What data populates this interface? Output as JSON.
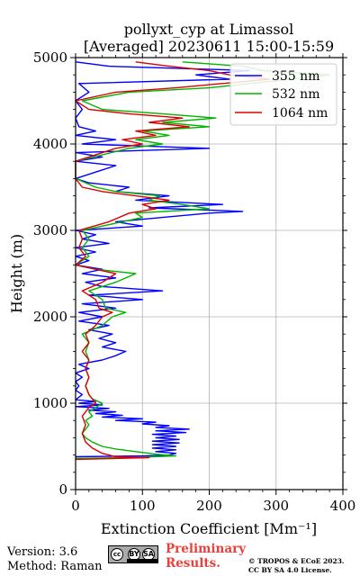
{
  "chart_data": {
    "type": "line",
    "title": "pollyxt_cyp at Limassol",
    "subtitle": "[Averaged] 20230611 15:00-15:59",
    "xlabel": "Extinction Coefficient [Mm⁻¹]",
    "ylabel": "Height (m)",
    "xlim": [
      0,
      400
    ],
    "ylim": [
      0,
      5000
    ],
    "xticks": [
      "0",
      "100",
      "200",
      "300",
      "400"
    ],
    "yticks": [
      "0",
      "1000",
      "2000",
      "3000",
      "4000",
      "5000"
    ],
    "grid": true,
    "legend_position": "top-right",
    "series": [
      {
        "name": "355 nm",
        "color": "#0000ff",
        "points": [
          [
            0,
            380
          ],
          [
            100,
            390
          ],
          [
            140,
            400
          ],
          [
            150,
            420
          ],
          [
            120,
            440
          ],
          [
            150,
            460
          ],
          [
            115,
            480
          ],
          [
            150,
            500
          ],
          [
            115,
            520
          ],
          [
            155,
            540
          ],
          [
            115,
            560
          ],
          [
            155,
            580
          ],
          [
            120,
            600
          ],
          [
            150,
            620
          ],
          [
            115,
            640
          ],
          [
            165,
            660
          ],
          [
            120,
            680
          ],
          [
            170,
            700
          ],
          [
            120,
            720
          ],
          [
            140,
            740
          ],
          [
            100,
            760
          ],
          [
            120,
            780
          ],
          [
            60,
            800
          ],
          [
            100,
            820
          ],
          [
            40,
            840
          ],
          [
            70,
            860
          ],
          [
            30,
            880
          ],
          [
            60,
            900
          ],
          [
            20,
            920
          ],
          [
            50,
            940
          ],
          [
            0,
            960
          ],
          [
            40,
            980
          ],
          [
            5,
            1000
          ],
          [
            30,
            1020
          ],
          [
            0,
            1040
          ],
          [
            10,
            1100
          ],
          [
            0,
            1150
          ],
          [
            5,
            1200
          ],
          [
            0,
            1250
          ],
          [
            10,
            1300
          ],
          [
            0,
            1350
          ],
          [
            20,
            1400
          ],
          [
            5,
            1450
          ],
          [
            40,
            1500
          ],
          [
            60,
            1550
          ],
          [
            75,
            1600
          ],
          [
            40,
            1650
          ],
          [
            60,
            1700
          ],
          [
            35,
            1750
          ],
          [
            55,
            1800
          ],
          [
            20,
            1850
          ],
          [
            50,
            1900
          ],
          [
            5,
            1950
          ],
          [
            40,
            2000
          ],
          [
            5,
            2050
          ],
          [
            60,
            2100
          ],
          [
            10,
            2150
          ],
          [
            100,
            2200
          ],
          [
            20,
            2250
          ],
          [
            130,
            2300
          ],
          [
            40,
            2350
          ],
          [
            15,
            2400
          ],
          [
            60,
            2450
          ],
          [
            10,
            2500
          ],
          [
            40,
            2550
          ],
          [
            0,
            2600
          ],
          [
            20,
            2650
          ],
          [
            0,
            2700
          ],
          [
            30,
            2750
          ],
          [
            0,
            2800
          ],
          [
            50,
            2850
          ],
          [
            10,
            2900
          ],
          [
            30,
            2950
          ],
          [
            0,
            3000
          ],
          [
            100,
            3050
          ],
          [
            60,
            3100
          ],
          [
            130,
            3150
          ],
          [
            200,
            3200
          ],
          [
            250,
            3220
          ],
          [
            110,
            3260
          ],
          [
            220,
            3300
          ],
          [
            90,
            3350
          ],
          [
            140,
            3400
          ],
          [
            60,
            3450
          ],
          [
            80,
            3500
          ],
          [
            20,
            3550
          ],
          [
            0,
            3600
          ],
          [
            40,
            3700
          ],
          [
            60,
            3750
          ],
          [
            0,
            3800
          ],
          [
            40,
            3850
          ],
          [
            0,
            3900
          ],
          [
            200,
            3950
          ],
          [
            10,
            4000
          ],
          [
            60,
            4050
          ],
          [
            0,
            4100
          ],
          [
            30,
            4150
          ],
          [
            5,
            4200
          ],
          [
            0,
            4300
          ],
          [
            10,
            4400
          ],
          [
            0,
            4500
          ],
          [
            20,
            4600
          ],
          [
            5,
            4700
          ],
          [
            230,
            4750
          ],
          [
            180,
            4800
          ],
          [
            260,
            4850
          ],
          [
            50,
            4900
          ],
          [
            0,
            4950
          ]
        ]
      },
      {
        "name": "532 nm",
        "color": "#00b400",
        "points": [
          [
            0,
            360
          ],
          [
            80,
            370
          ],
          [
            150,
            390
          ],
          [
            120,
            410
          ],
          [
            90,
            440
          ],
          [
            60,
            470
          ],
          [
            40,
            500
          ],
          [
            25,
            550
          ],
          [
            15,
            600
          ],
          [
            10,
            650
          ],
          [
            15,
            700
          ],
          [
            20,
            750
          ],
          [
            15,
            800
          ],
          [
            25,
            850
          ],
          [
            20,
            900
          ],
          [
            30,
            950
          ],
          [
            40,
            1000
          ],
          [
            25,
            1050
          ],
          [
            20,
            1100
          ],
          [
            15,
            1200
          ],
          [
            20,
            1300
          ],
          [
            15,
            1400
          ],
          [
            20,
            1500
          ],
          [
            15,
            1600
          ],
          [
            20,
            1700
          ],
          [
            10,
            1800
          ],
          [
            40,
            1900
          ],
          [
            55,
            2000
          ],
          [
            75,
            2050
          ],
          [
            45,
            2100
          ],
          [
            40,
            2200
          ],
          [
            20,
            2300
          ],
          [
            60,
            2400
          ],
          [
            90,
            2500
          ],
          [
            30,
            2550
          ],
          [
            0,
            2600
          ],
          [
            20,
            2700
          ],
          [
            10,
            2800
          ],
          [
            20,
            2900
          ],
          [
            10,
            3000
          ],
          [
            70,
            3100
          ],
          [
            100,
            3150
          ],
          [
            90,
            3200
          ],
          [
            200,
            3250
          ],
          [
            160,
            3300
          ],
          [
            110,
            3350
          ],
          [
            125,
            3400
          ],
          [
            60,
            3450
          ],
          [
            30,
            3500
          ],
          [
            0,
            3600
          ],
          [
            0,
            3800
          ],
          [
            80,
            3950
          ],
          [
            130,
            4000
          ],
          [
            90,
            4050
          ],
          [
            140,
            4100
          ],
          [
            100,
            4150
          ],
          [
            200,
            4200
          ],
          [
            130,
            4250
          ],
          [
            210,
            4300
          ],
          [
            130,
            4350
          ],
          [
            40,
            4400
          ],
          [
            10,
            4500
          ],
          [
            80,
            4600
          ],
          [
            200,
            4650
          ],
          [
            380,
            4800
          ],
          [
            280,
            4850
          ],
          [
            250,
            4900
          ],
          [
            160,
            4950
          ]
        ]
      },
      {
        "name": "1064 nm",
        "color": "#dc0000",
        "points": [
          [
            0,
            350
          ],
          [
            110,
            370
          ],
          [
            60,
            380
          ],
          [
            40,
            420
          ],
          [
            25,
            480
          ],
          [
            15,
            550
          ],
          [
            10,
            650
          ],
          [
            15,
            750
          ],
          [
            10,
            850
          ],
          [
            20,
            950
          ],
          [
            30,
            1000
          ],
          [
            20,
            1100
          ],
          [
            15,
            1200
          ],
          [
            20,
            1300
          ],
          [
            15,
            1400
          ],
          [
            20,
            1500
          ],
          [
            10,
            1600
          ],
          [
            20,
            1700
          ],
          [
            15,
            1800
          ],
          [
            30,
            1900
          ],
          [
            40,
            2000
          ],
          [
            55,
            2050
          ],
          [
            35,
            2100
          ],
          [
            30,
            2200
          ],
          [
            10,
            2300
          ],
          [
            40,
            2400
          ],
          [
            60,
            2500
          ],
          [
            30,
            2550
          ],
          [
            0,
            2600
          ],
          [
            15,
            2700
          ],
          [
            5,
            2800
          ],
          [
            10,
            2900
          ],
          [
            5,
            3000
          ],
          [
            50,
            3100
          ],
          [
            80,
            3200
          ],
          [
            120,
            3250
          ],
          [
            100,
            3300
          ],
          [
            140,
            3350
          ],
          [
            90,
            3400
          ],
          [
            40,
            3450
          ],
          [
            10,
            3500
          ],
          [
            0,
            3600
          ],
          [
            0,
            3800
          ],
          [
            60,
            3950
          ],
          [
            100,
            4000
          ],
          [
            70,
            4050
          ],
          [
            120,
            4100
          ],
          [
            90,
            4150
          ],
          [
            170,
            4200
          ],
          [
            110,
            4250
          ],
          [
            160,
            4300
          ],
          [
            80,
            4350
          ],
          [
            20,
            4400
          ],
          [
            0,
            4500
          ],
          [
            60,
            4600
          ],
          [
            150,
            4650
          ],
          [
            290,
            4750
          ],
          [
            230,
            4800
          ],
          [
            200,
            4850
          ],
          [
            140,
            4900
          ],
          [
            90,
            4950
          ]
        ]
      }
    ]
  },
  "footer": {
    "version": "Version: 3.6",
    "method": "Method: Raman",
    "cc_label": "cc",
    "by_label": "BY",
    "sa_label": "SA",
    "preliminary_1": "Preliminary",
    "preliminary_2": "Results.",
    "copyright_1": "© TROPOS & ECoE 2023.",
    "copyright_2": "CC BY SA 4.0 License."
  }
}
